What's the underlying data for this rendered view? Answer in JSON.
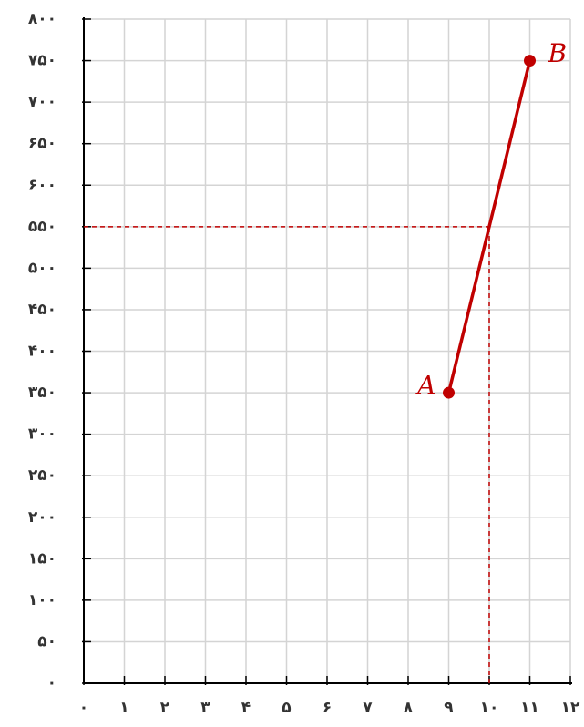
{
  "chart_data": {
    "type": "line",
    "x": [
      9,
      11
    ],
    "series": [
      {
        "color": "#c00000",
        "values": [
          350,
          750
        ],
        "point_labels": [
          "A",
          "B"
        ]
      }
    ],
    "guide": {
      "x": 10,
      "y": 550,
      "color": "#c00000"
    },
    "xlim": [
      0,
      12
    ],
    "ylim": [
      0,
      800
    ],
    "xticks": [
      {
        "value": 0,
        "label": "۰"
      },
      {
        "value": 1,
        "label": "۱"
      },
      {
        "value": 2,
        "label": "۲"
      },
      {
        "value": 3,
        "label": "۳"
      },
      {
        "value": 4,
        "label": "۴"
      },
      {
        "value": 5,
        "label": "۵"
      },
      {
        "value": 6,
        "label": "۶"
      },
      {
        "value": 7,
        "label": "۷"
      },
      {
        "value": 8,
        "label": "۸"
      },
      {
        "value": 9,
        "label": "۹"
      },
      {
        "value": 10,
        "label": "۱۰"
      },
      {
        "value": 11,
        "label": "۱۱"
      },
      {
        "value": 12,
        "label": "۱۲"
      }
    ],
    "yticks": [
      {
        "value": 0,
        "label": "۰"
      },
      {
        "value": 50,
        "label": "۵۰"
      },
      {
        "value": 100,
        "label": "۱۰۰"
      },
      {
        "value": 150,
        "label": "۱۵۰"
      },
      {
        "value": 200,
        "label": "۲۰۰"
      },
      {
        "value": 250,
        "label": "۲۵۰"
      },
      {
        "value": 300,
        "label": "۳۰۰"
      },
      {
        "value": 350,
        "label": "۳۵۰"
      },
      {
        "value": 400,
        "label": "۴۰۰"
      },
      {
        "value": 450,
        "label": "۴۵۰"
      },
      {
        "value": 500,
        "label": "۵۰۰"
      },
      {
        "value": 550,
        "label": "۵۵۰"
      },
      {
        "value": 600,
        "label": "۶۰۰"
      },
      {
        "value": 650,
        "label": "۶۵۰"
      },
      {
        "value": 700,
        "label": "۷۰۰"
      },
      {
        "value": 750,
        "label": "۷۵۰"
      },
      {
        "value": 800,
        "label": "۸۰۰"
      }
    ],
    "grid": true
  }
}
